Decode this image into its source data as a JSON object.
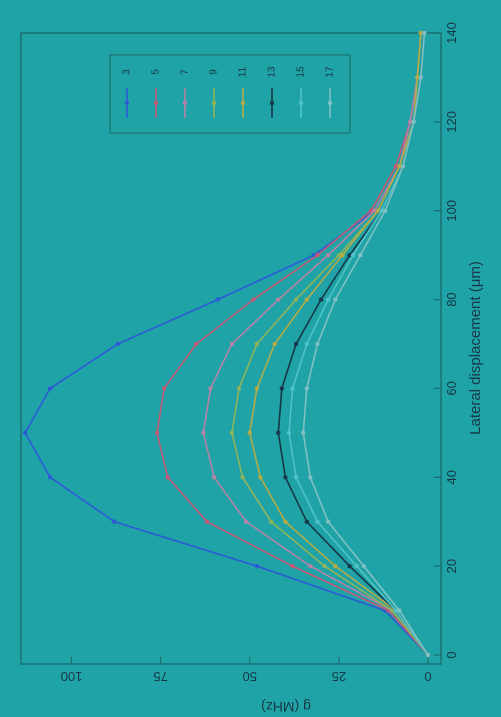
{
  "chart_data": {
    "type": "line",
    "orientation": "rotated-90",
    "xlabel": "Lateral displacement (μm)",
    "ylabel": "g (MHz)",
    "xlim": [
      0,
      140
    ],
    "ylim": [
      0,
      115
    ],
    "x_ticks": [
      0,
      20,
      40,
      60,
      80,
      100,
      120,
      140
    ],
    "y_ticks": [
      0,
      25,
      50,
      75,
      100
    ],
    "x_tick_labels": [
      "0",
      "20",
      "40",
      "60",
      "80",
      "100",
      "120",
      "140"
    ],
    "y_tick_labels": [
      "0",
      "25",
      "50",
      "75",
      "100"
    ],
    "grid": false,
    "legend_position": "top-right",
    "x": [
      0,
      10,
      20,
      30,
      40,
      50,
      60,
      70,
      80,
      90,
      100,
      110,
      120,
      130,
      140
    ],
    "series": [
      {
        "name": "3",
        "color": "#2d5bd6",
        "marker": "circle",
        "values": [
          0,
          12,
          48,
          88,
          106,
          113,
          106,
          87,
          59,
          32,
          15,
          8,
          5,
          3,
          2
        ]
      },
      {
        "name": "5",
        "color": "#c25a76",
        "marker": "circle",
        "values": [
          0,
          11,
          38,
          62,
          73,
          76,
          74,
          65,
          49,
          31,
          16,
          9,
          5,
          3,
          2
        ]
      },
      {
        "name": "7",
        "color": "#b583a6",
        "marker": "circle",
        "values": [
          0,
          10,
          33,
          51,
          60,
          63,
          61,
          55,
          42,
          28,
          15,
          8,
          5,
          3,
          2
        ]
      },
      {
        "name": "9",
        "color": "#8fb35a",
        "marker": "circle",
        "values": [
          0,
          10,
          29,
          44,
          52,
          55,
          53,
          48,
          37,
          25,
          14,
          8,
          4,
          3,
          2
        ]
      },
      {
        "name": "11",
        "color": "#b2ab47",
        "marker": "circle",
        "values": [
          0,
          9,
          26,
          40,
          47,
          50,
          48,
          43,
          34,
          24,
          14,
          8,
          4,
          3,
          2
        ]
      },
      {
        "name": "13",
        "color": "#173848",
        "marker": "circle",
        "values": [
          0,
          9,
          22,
          34,
          40,
          42,
          41,
          37,
          30,
          22,
          13,
          7,
          4,
          2,
          1
        ]
      },
      {
        "name": "15",
        "color": "#4fc3c6",
        "marker": "circle",
        "values": [
          0,
          9,
          20,
          31,
          37,
          39,
          38,
          34,
          28,
          21,
          13,
          7,
          4,
          2,
          1
        ]
      },
      {
        "name": "17",
        "color": "#7ec0c3",
        "marker": "circle",
        "values": [
          0,
          8,
          18,
          28,
          33,
          35,
          34,
          31,
          26,
          19,
          12,
          7,
          4,
          2,
          1
        ]
      }
    ]
  }
}
